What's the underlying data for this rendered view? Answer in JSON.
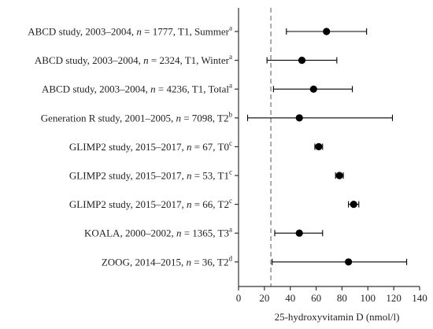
{
  "chart_data": {
    "type": "forest",
    "title": "",
    "xlabel": "25-hydroxyvitamin D (nmol/l)",
    "ylabel": "",
    "xlim": [
      0,
      140
    ],
    "xticks": [
      "0",
      "20",
      "40",
      "60",
      "80",
      "100",
      "120",
      "140"
    ],
    "reference_line": 25,
    "grid": false,
    "legend": "none",
    "colors": {
      "marker": "#000000",
      "whisker": "#000000",
      "axis": "#333333",
      "reference": "#888888"
    },
    "studies": [
      {
        "label": "ABCD study, 2003–2004, ",
        "n_label": "n",
        "n_value": " = 1777, T1, Summer",
        "sup": "a",
        "mean": 68,
        "lower": 37,
        "upper": 99
      },
      {
        "label": "ABCD study, 2003–2004, ",
        "n_label": "n",
        "n_value": " = 2324, T1, Winter",
        "sup": "a",
        "mean": 49,
        "lower": 22,
        "upper": 76
      },
      {
        "label": "ABCD study, 2003–2004, ",
        "n_label": "n",
        "n_value": " = 4236, T1, Total",
        "sup": "a",
        "mean": 58,
        "lower": 27,
        "upper": 88
      },
      {
        "label": "Generation R study, 2001–2005, ",
        "n_label": "n",
        "n_value": " = 7098, T2",
        "sup": "b",
        "mean": 47,
        "lower": 7,
        "upper": 119
      },
      {
        "label": "GLIMP2 study, 2015–2017, ",
        "n_label": "n",
        "n_value": " = 67, T0",
        "sup": "c",
        "mean": 62,
        "lower": 59,
        "upper": 65
      },
      {
        "label": "GLIMP2 study, 2015–2017, ",
        "n_label": "n",
        "n_value": " = 53, T1",
        "sup": "c",
        "mean": 78,
        "lower": 75,
        "upper": 81
      },
      {
        "label": "GLIMP2 study, 2015–2017, ",
        "n_label": "n",
        "n_value": " = 66, T2",
        "sup": "c",
        "mean": 89,
        "lower": 85,
        "upper": 93
      },
      {
        "label": "KOALA, 2000–2002, ",
        "n_label": "n",
        "n_value": " = 1365, T3",
        "sup": "a",
        "mean": 47,
        "lower": 28,
        "upper": 65
      },
      {
        "label": "ZOOG, 2014–2015, ",
        "n_label": "n",
        "n_value": " = 36, T2",
        "sup": "d",
        "mean": 85,
        "lower": 26,
        "upper": 130
      }
    ]
  }
}
